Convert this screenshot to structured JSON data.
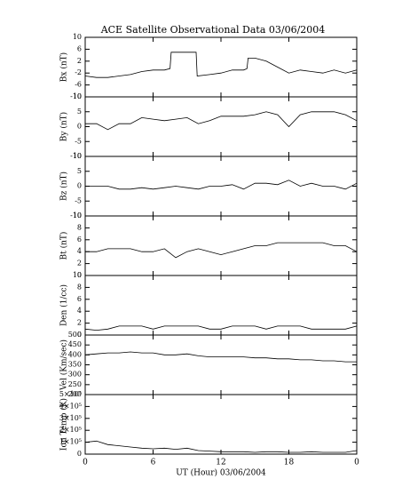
{
  "chart_data": [
    {
      "type": "line",
      "title": "ACE Satellite Observational Data   03/06/2004",
      "ylabel": "Bx (nT)",
      "color": "#000000",
      "x": [
        0,
        1,
        2,
        3,
        4,
        5,
        6,
        7,
        7.5,
        7.6,
        8,
        9,
        9.8,
        9.9,
        11,
        12,
        13,
        14,
        14.3,
        14.4,
        15,
        16,
        17,
        18,
        19,
        20,
        21,
        22,
        23,
        24
      ],
      "values": [
        -3,
        -3.5,
        -3.5,
        -3,
        -2.5,
        -1.5,
        -1,
        -1,
        -0.5,
        5,
        5,
        5,
        5,
        -3,
        -2.5,
        -2,
        -1,
        -1,
        -0.5,
        3,
        3,
        2,
        0,
        -2,
        -1,
        -1.5,
        -2,
        -1,
        -2,
        -1
      ],
      "xlim": [
        0,
        24
      ],
      "ylim": [
        -10,
        10
      ],
      "yticks": [
        -10,
        -6,
        -2,
        2,
        6,
        10
      ]
    },
    {
      "type": "line",
      "ylabel": "By (nT)",
      "color": "#000000",
      "x": [
        0,
        1,
        2,
        3,
        4,
        5,
        6,
        7,
        8,
        9,
        10,
        11,
        12,
        13,
        14,
        15,
        16,
        17,
        18,
        19,
        20,
        21,
        22,
        23,
        24
      ],
      "values": [
        1,
        1,
        -1,
        1,
        1,
        3,
        2.5,
        2,
        2.5,
        3,
        1,
        2,
        3.5,
        3.5,
        3.5,
        4,
        5,
        4,
        0,
        4,
        5,
        5,
        5,
        4,
        2
      ],
      "xlim": [
        0,
        24
      ],
      "ylim": [
        -10,
        10
      ],
      "yticks": [
        -10,
        -5,
        0,
        5,
        10
      ]
    },
    {
      "type": "line",
      "ylabel": "Bz (nT)",
      "color": "#000000",
      "x": [
        0,
        1,
        2,
        3,
        4,
        5,
        6,
        7,
        8,
        9,
        10,
        11,
        12,
        13,
        14,
        15,
        16,
        17,
        18,
        19,
        20,
        21,
        22,
        23,
        24
      ],
      "values": [
        0,
        0,
        0,
        -1,
        -1,
        -0.5,
        -1,
        -0.5,
        0,
        -0.5,
        -1,
        0,
        0,
        0.5,
        -1,
        1,
        1,
        0.5,
        2,
        0,
        1,
        0,
        0,
        -1,
        1
      ],
      "xlim": [
        0,
        24
      ],
      "ylim": [
        -10,
        10
      ],
      "yticks": [
        -10,
        -5,
        0,
        5,
        10
      ]
    },
    {
      "type": "line",
      "ylabel": "Bt (nT)",
      "color": "#000000",
      "x": [
        0,
        1,
        2,
        3,
        4,
        5,
        6,
        7,
        8,
        9,
        10,
        11,
        12,
        13,
        14,
        15,
        16,
        17,
        18,
        19,
        20,
        21,
        22,
        23,
        24
      ],
      "values": [
        4,
        4,
        4.5,
        4.5,
        4.5,
        4,
        4,
        4.5,
        3,
        4,
        4.5,
        4,
        3.5,
        4,
        4.5,
        5,
        5,
        5.5,
        5.5,
        5.5,
        5.5,
        5.5,
        5,
        5,
        4
      ],
      "xlim": [
        0,
        24
      ],
      "ylim": [
        0,
        10
      ],
      "yticks": [
        0,
        2,
        4,
        6,
        8,
        10
      ]
    },
    {
      "type": "line",
      "ylabel": "Den (1/cc)",
      "color": "#000000",
      "x": [
        0,
        1,
        2,
        3,
        4,
        5,
        6,
        7,
        8,
        9,
        10,
        11,
        12,
        13,
        14,
        15,
        16,
        17,
        18,
        19,
        20,
        21,
        22,
        23,
        24
      ],
      "values": [
        1,
        0.8,
        1,
        1.5,
        1.5,
        1.5,
        1,
        1.5,
        1.5,
        1.5,
        1.5,
        1,
        1,
        1.5,
        1.5,
        1.5,
        1,
        1.5,
        1.5,
        1.5,
        1,
        1,
        1,
        1,
        1.5
      ],
      "xlim": [
        0,
        24
      ],
      "ylim": [
        0,
        10
      ],
      "yticks": [
        0,
        2,
        4,
        6,
        8,
        10
      ]
    },
    {
      "type": "line",
      "ylabel": "Vel (Km/sec)",
      "color": "#000000",
      "x": [
        0,
        1,
        2,
        3,
        4,
        5,
        6,
        7,
        8,
        9,
        10,
        11,
        12,
        13,
        14,
        15,
        16,
        17,
        18,
        19,
        20,
        21,
        22,
        23,
        24
      ],
      "values": [
        400,
        405,
        410,
        410,
        415,
        410,
        410,
        400,
        400,
        405,
        395,
        390,
        390,
        390,
        390,
        385,
        385,
        380,
        380,
        375,
        375,
        370,
        370,
        365,
        365
      ],
      "xlim": [
        0,
        24
      ],
      "ylim": [
        200,
        500
      ],
      "yticks": [
        200,
        250,
        300,
        350,
        400,
        450,
        500
      ]
    },
    {
      "type": "line",
      "ylabel": "Ion Temp (K)",
      "xlabel": "UT (Hour)  03/06/2004",
      "color": "#000000",
      "x": [
        0,
        1,
        2,
        3,
        4,
        5,
        6,
        7,
        8,
        9,
        10,
        11,
        12,
        13,
        14,
        15,
        16,
        17,
        18,
        19,
        20,
        21,
        22,
        23,
        24
      ],
      "values": [
        100000,
        110000,
        80000,
        70000,
        60000,
        50000,
        45000,
        50000,
        40000,
        50000,
        30000,
        25000,
        20000,
        20000,
        20000,
        15000,
        20000,
        20000,
        15000,
        15000,
        20000,
        15000,
        15000,
        15000,
        30000
      ],
      "xlim": [
        0,
        24
      ],
      "xticks": [
        0,
        6,
        12,
        18,
        {
          "value": 24,
          "label": "0"
        }
      ],
      "ylim": [
        0,
        500000
      ],
      "yticks": [
        0,
        {
          "value": 100000,
          "label": "1×10⁵"
        },
        {
          "value": 200000,
          "label": "2×10⁵"
        },
        {
          "value": 300000,
          "label": "3×10⁵"
        },
        {
          "value": 400000,
          "label": "4×10⁵"
        },
        {
          "value": 500000,
          "label": "5×10⁵"
        }
      ]
    }
  ]
}
